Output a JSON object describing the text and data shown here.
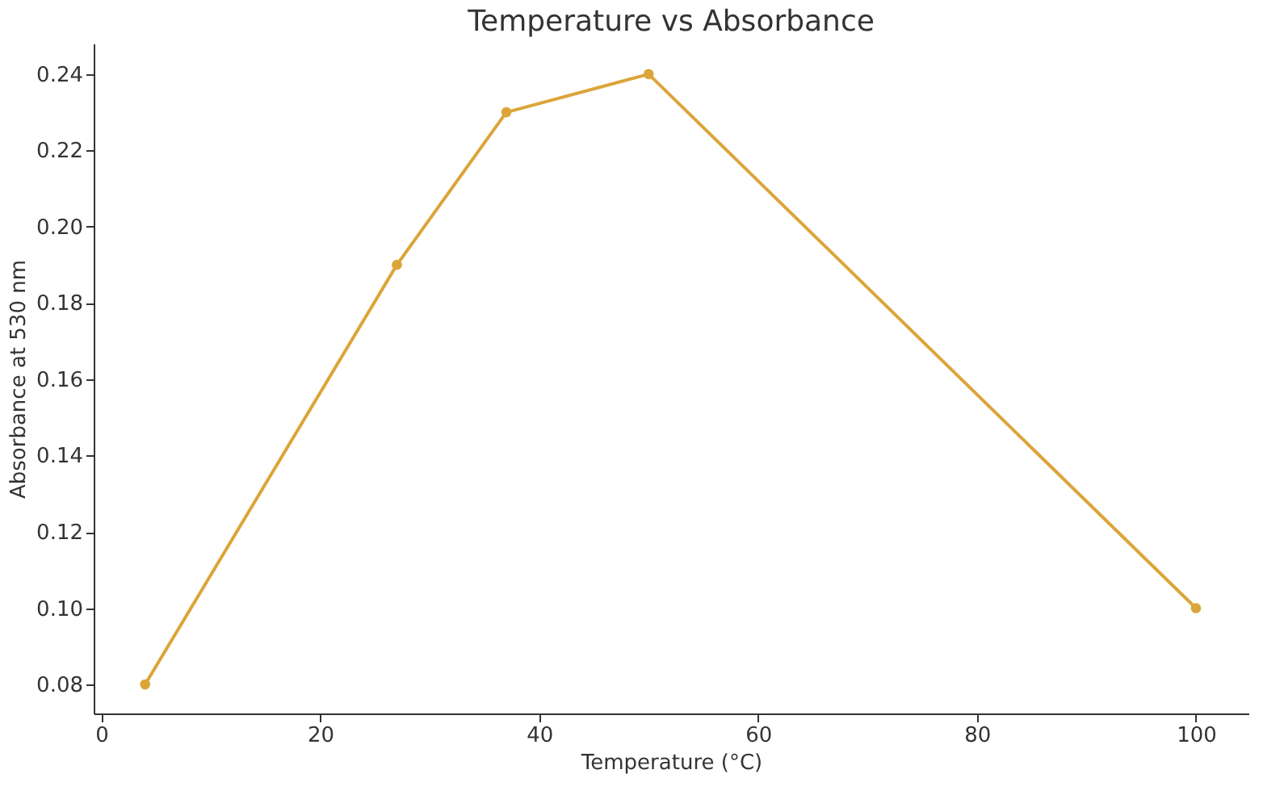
{
  "chart_data": {
    "type": "line",
    "title": "Temperature vs Absorbance",
    "xlabel": "Temperature (°C)",
    "ylabel": "Absorbance at 530 nm",
    "x": [
      4,
      27,
      37,
      50,
      100
    ],
    "series": [
      {
        "color": "#dba53a",
        "values": [
          0.08,
          0.19,
          0.23,
          0.24,
          0.1
        ]
      }
    ],
    "xlim": [
      -0.7,
      104.8
    ],
    "ylim": [
      0.0724,
      0.248
    ],
    "xticks": [
      0,
      20,
      40,
      60,
      80,
      100
    ],
    "yticks": [
      {
        "value": 0.08,
        "label": "0.08"
      },
      {
        "value": 0.1,
        "label": "0.10"
      },
      {
        "value": 0.12,
        "label": "0.12"
      },
      {
        "value": 0.14,
        "label": "0.14"
      },
      {
        "value": 0.16,
        "label": "0.16"
      },
      {
        "value": 0.18,
        "label": "0.18"
      },
      {
        "value": 0.2,
        "label": "0.20"
      },
      {
        "value": 0.22,
        "label": "0.22"
      },
      {
        "value": 0.24,
        "label": "0.24"
      }
    ],
    "grid": false,
    "marker": "circle",
    "line_style": "solid"
  }
}
